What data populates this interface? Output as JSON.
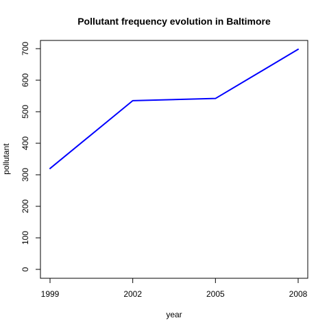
{
  "chart_data": {
    "type": "line",
    "title": "Pollutant frequency evolution in Baltimore",
    "xlabel": "year",
    "ylabel": "pollutant",
    "x": [
      1999,
      2002,
      2005,
      2008
    ],
    "series": [
      {
        "values": [
          320,
          535,
          542,
          698
        ]
      }
    ],
    "xlim": [
      1999,
      2008
    ],
    "ylim": [
      0,
      700
    ],
    "xticks": [
      "1999",
      "2002",
      "2005",
      "2008"
    ],
    "yticks": [
      "0",
      "100",
      "200",
      "300",
      "400",
      "500",
      "600",
      "700"
    ],
    "grid": false,
    "line_color": "#0000ff"
  }
}
